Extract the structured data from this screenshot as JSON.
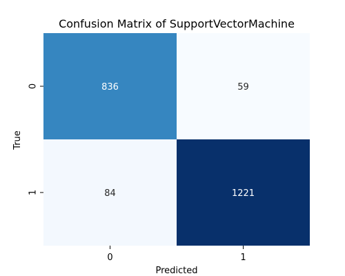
{
  "chart_data": {
    "type": "heatmap",
    "title": "Confusion Matrix of SupportVectorMachine",
    "xlabel": "Predicted",
    "ylabel": "True",
    "x_categories": [
      "0",
      "1"
    ],
    "y_categories": [
      "0",
      "1"
    ],
    "values": [
      [
        836,
        59
      ],
      [
        84,
        1221
      ]
    ],
    "colormap": "Blues",
    "vmin": 59,
    "vmax": 1221,
    "colorbar": false,
    "grid": false,
    "colors": {
      "low": "#f7fbff",
      "high": "#08306b",
      "text_on_light": "#262626",
      "text_on_dark": "#ffffff"
    }
  }
}
